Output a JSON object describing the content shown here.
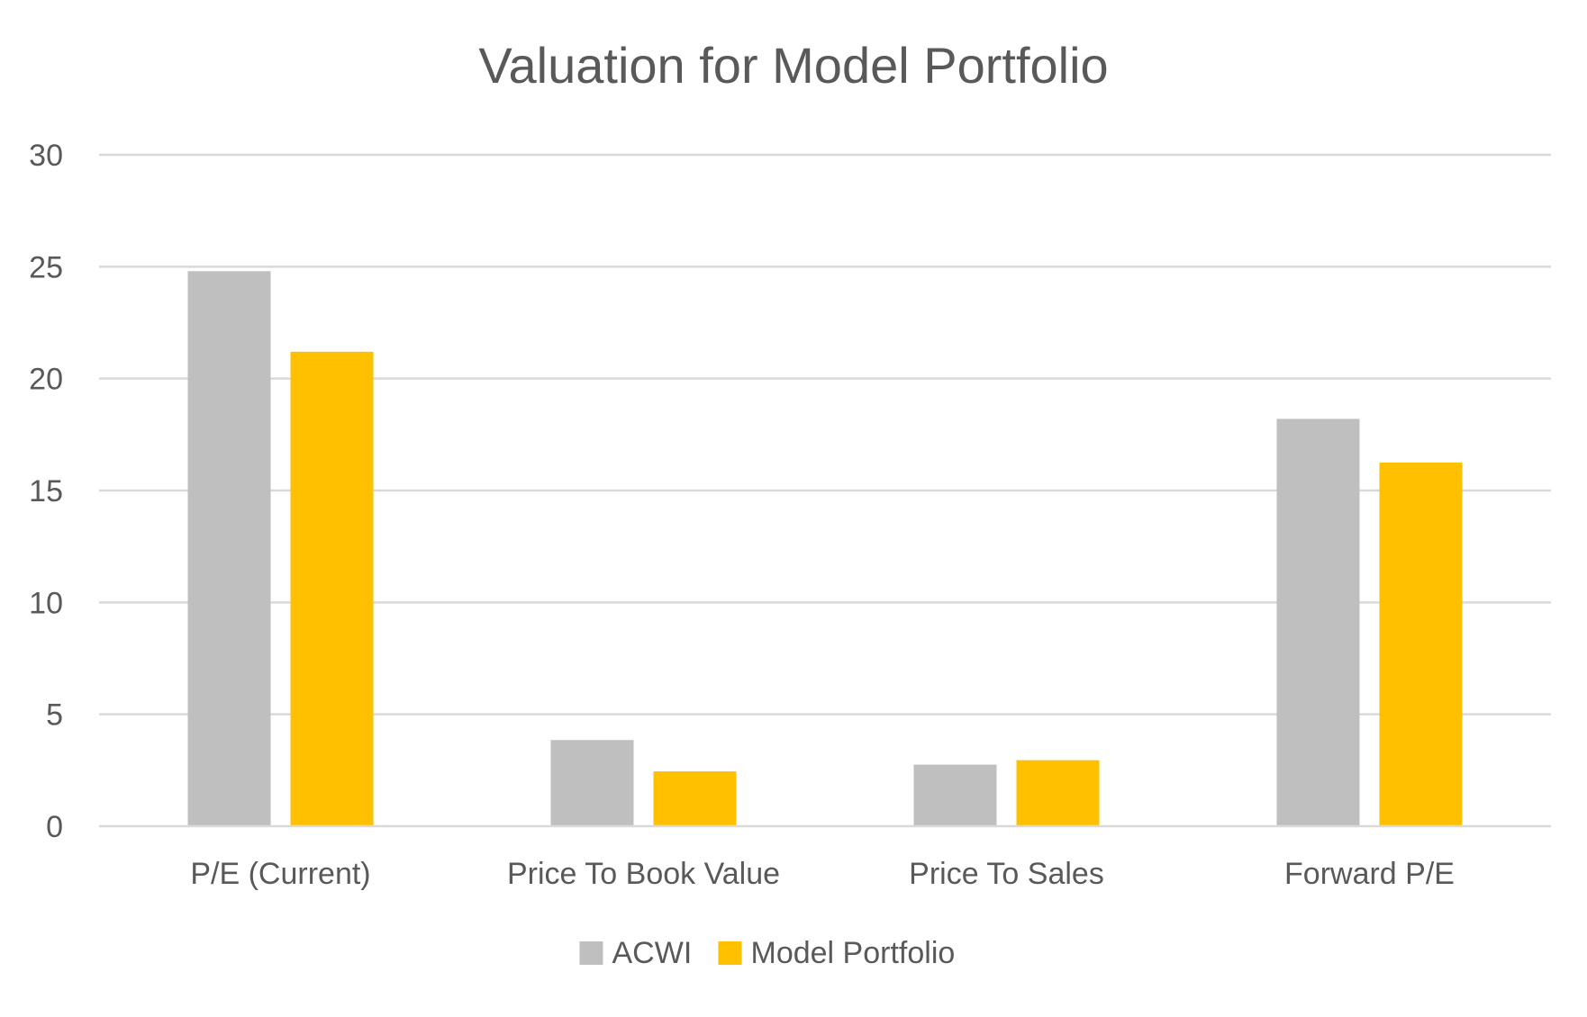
{
  "chart_data": {
    "type": "bar",
    "title": "Valuation for Model Portfolio",
    "xlabel": "",
    "ylabel": "",
    "ylim": [
      0,
      30
    ],
    "yticks": [
      "0",
      "5",
      "10",
      "15",
      "20",
      "25",
      "30"
    ],
    "grid": true,
    "legend_position": "bottom",
    "categories": [
      "P/E (Current)",
      "Price To Book Value",
      "Price To Sales",
      "Forward P/E"
    ],
    "series": [
      {
        "name": "ACWI",
        "color": "#bfbfbf",
        "values": [
          24.8,
          3.85,
          2.75,
          18.2
        ]
      },
      {
        "name": "Model Portfolio",
        "color": "#ffc000",
        "values": [
          21.2,
          2.45,
          2.95,
          16.25
        ]
      }
    ]
  }
}
